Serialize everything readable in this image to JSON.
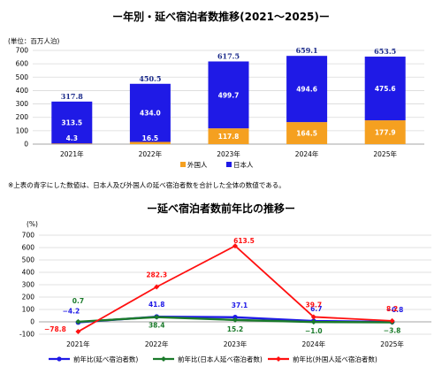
{
  "top": {
    "title": "ー年別・延べ宿泊者数推移(2021～2025)ー",
    "unit": "(単位：百万人泊)",
    "note": "※上表の青字にした数値は、日本人及び外国人の延べ宿泊者数を合計した全体の数値である。"
  },
  "bottom": {
    "title": "ー延べ宿泊者数前年比の推移ー",
    "unit": "(%)"
  },
  "chart_data": [
    {
      "type": "bar",
      "stacked": true,
      "title": "ー年別・延べ宿泊者数推移(2021～2025)ー",
      "ylabel": "(単位：百万人泊)",
      "categories": [
        "2021年",
        "2022年",
        "2023年",
        "2024年",
        "2025年"
      ],
      "ylim": [
        0,
        700
      ],
      "yticks": [
        0,
        100,
        200,
        300,
        400,
        500,
        600,
        700
      ],
      "series": [
        {
          "name": "外国人",
          "color": "#f5a020",
          "label_color": "#0000e0",
          "values": [
            4.3,
            16.5,
            117.8,
            164.5,
            177.9
          ],
          "labels": [
            "4.3",
            "16.5",
            "117.8",
            "164.5",
            "177.9"
          ]
        },
        {
          "name": "日本人",
          "color": "#1f1ae6",
          "label_color": "#ffffff",
          "values": [
            313.5,
            434.0,
            499.7,
            494.6,
            475.6
          ],
          "labels": [
            "313.5",
            "434.0",
            "499.7",
            "494.6",
            "475.6"
          ]
        }
      ],
      "totals": [
        317.8,
        450.5,
        617.5,
        659.1,
        653.5
      ],
      "total_labels": [
        "317.8",
        "450.5",
        "617.5",
        "659.1",
        "653.5"
      ],
      "legend_position": "bottom"
    },
    {
      "type": "line",
      "title": "ー延べ宿泊者数前年比の推移ー",
      "ylabel": "(%)",
      "categories": [
        "2021年",
        "2022年",
        "2023年",
        "2024年",
        "2025年"
      ],
      "ylim": [
        -100,
        700
      ],
      "yticks": [
        -100,
        0,
        100,
        200,
        300,
        400,
        500,
        600,
        700
      ],
      "series": [
        {
          "name": "前年比(延べ宿泊者数)",
          "color": "#1f1ae6",
          "values": [
            -4.2,
            41.8,
            37.1,
            6.7,
            -0.8
          ],
          "labels": [
            "−4.2",
            "41.8",
            "37.1",
            "6.7",
            "−0.8"
          ]
        },
        {
          "name": "前年比(日本人延べ宿泊者数)",
          "color": "#1a7a2a",
          "values": [
            0.7,
            38.4,
            15.2,
            -1.0,
            -3.8
          ],
          "labels": [
            "0.7",
            "38.4",
            "15.2",
            "−1.0",
            "−3.8"
          ]
        },
        {
          "name": "前年比(外国人延べ宿泊者数)",
          "color": "#ff1010",
          "values": [
            -78.8,
            282.3,
            613.5,
            39.7,
            8.2
          ],
          "labels": [
            "−78.8",
            "282.3",
            "613.5",
            "39.7",
            "8.2"
          ]
        }
      ],
      "legend_position": "bottom"
    }
  ]
}
